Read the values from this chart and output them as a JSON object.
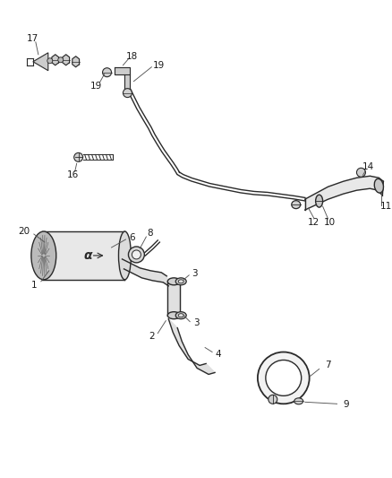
{
  "bg_color": "#ffffff",
  "line_color": "#2a2a2a",
  "label_color": "#1a1a1a",
  "leader_color": "#555555",
  "fig_width": 4.38,
  "fig_height": 5.33,
  "dpi": 100,
  "xlim": [
    0,
    438
  ],
  "ylim": [
    533,
    0
  ]
}
